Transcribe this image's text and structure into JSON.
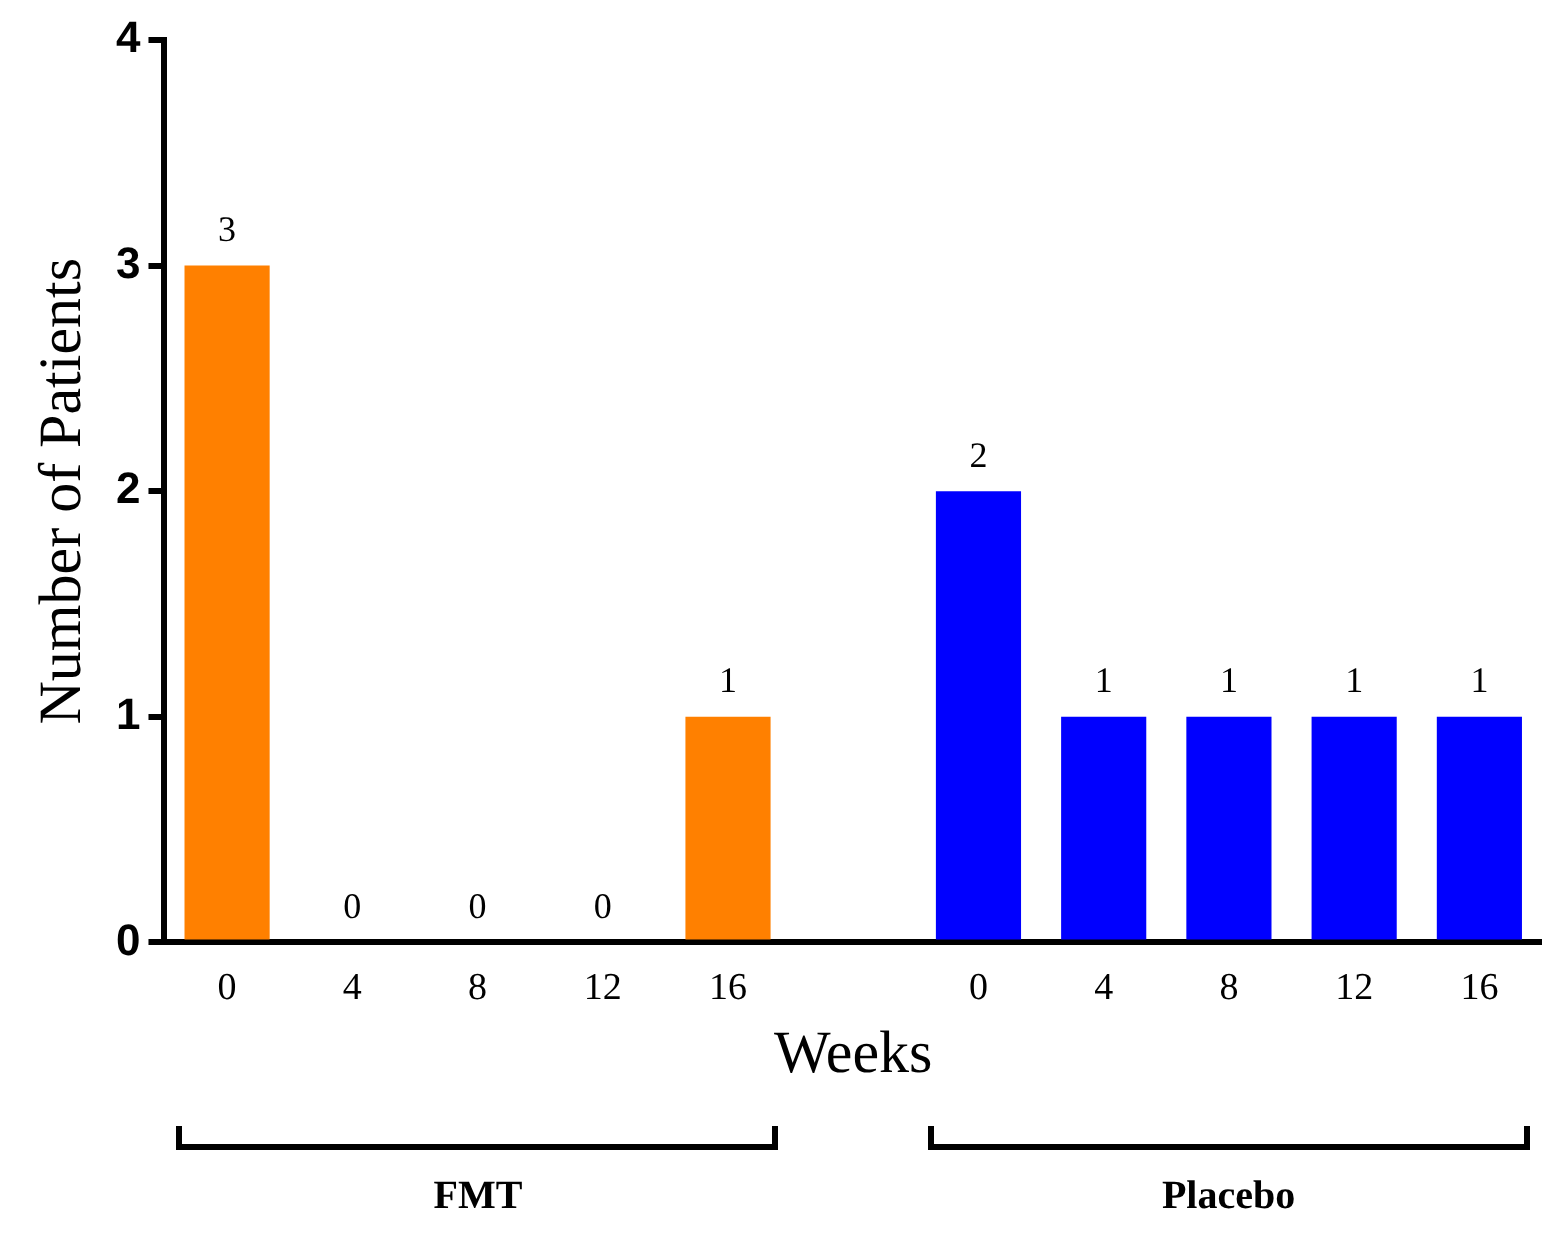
{
  "chart_data": {
    "type": "bar",
    "categories": [
      "0",
      "4",
      "8",
      "12",
      "16",
      null,
      "0",
      "4",
      "8",
      "12",
      "16"
    ],
    "series": [
      {
        "color": "#ff8000",
        "values": [
          3,
          0,
          0,
          0,
          1,
          null,
          null,
          null,
          null,
          null,
          null
        ]
      },
      {
        "color": "#0000ff",
        "values": [
          null,
          null,
          null,
          null,
          null,
          null,
          2,
          1,
          1,
          1,
          1
        ]
      }
    ],
    "annotations": [
      "FMT",
      "Placebo"
    ],
    "xlabel": "Weeks",
    "ylabel": "Number of Patients",
    "ylim": [
      0,
      4
    ],
    "yticks": [
      0,
      1,
      2,
      3,
      4
    ],
    "grid": false,
    "legend": false,
    "data_labels": true
  }
}
